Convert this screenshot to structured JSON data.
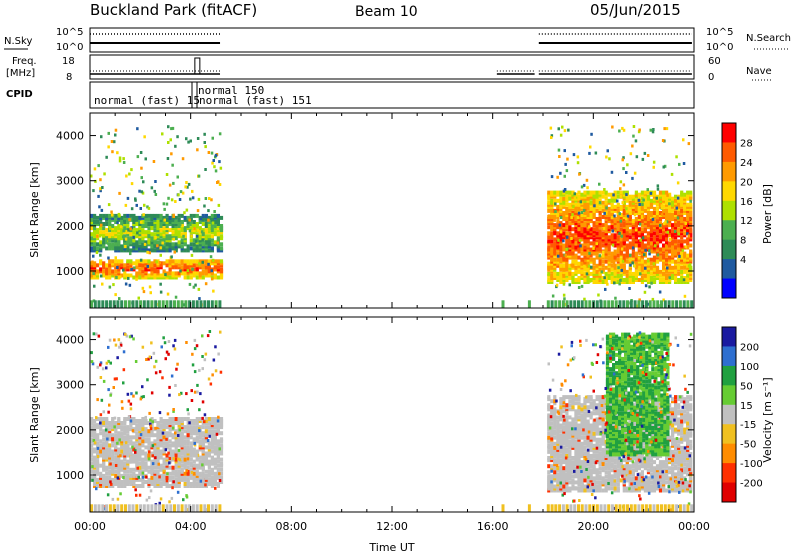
{
  "header": {
    "station": "Buckland Park (fitACF)",
    "beam": "Beam 10",
    "date": "05/Jun/2015"
  },
  "top_panels": {
    "nsky_label": "N.Sky",
    "nsearch_label": "N.Search",
    "left_ticks": [
      "10^5",
      "10^0"
    ],
    "right_ticks": [
      "10^5",
      "10^0"
    ],
    "freq_label_1": "Freq.",
    "freq_label_2": "[MHz]",
    "freq_ticks": [
      "18",
      "8"
    ],
    "nave_label": "Nave",
    "nave_ticks": [
      "60",
      "0"
    ],
    "cpid_label": "CPID",
    "cpid_entries": [
      "normal (fast) 15",
      "normal 150",
      "normal (fast) 151"
    ]
  },
  "chart_data": [
    {
      "type": "heatmap",
      "title": "",
      "xlabel": "",
      "ylabel": "Slant Range [km]",
      "xlim": [
        "00:00",
        "24:00"
      ],
      "ylim": [
        180,
        4500
      ],
      "yticks": [
        1000,
        2000,
        3000,
        4000
      ],
      "colorbar": {
        "label": "Power [dB]",
        "ticks": [
          "28",
          "24",
          "20",
          "16",
          "12",
          "8",
          "4"
        ],
        "colors": [
          "#ff0000",
          "#ff5a00",
          "#ff9a00",
          "#ffd800",
          "#aee000",
          "#4caf50",
          "#2e8b57",
          "#1f5aa0",
          "#0000ff"
        ]
      },
      "features": [
        {
          "desc": "strong scatter band",
          "time": [
            "00:00",
            "05:10"
          ],
          "range_km": [
            900,
            1300
          ],
          "level_db": 26
        },
        {
          "desc": "second band",
          "time": [
            "00:00",
            "05:10"
          ],
          "range_km": [
            1500,
            2300
          ],
          "level_db": 18
        },
        {
          "desc": "evening echoes",
          "time": [
            "18:10",
            "23:50"
          ],
          "range_km": [
            800,
            2800
          ],
          "level_db": 24
        }
      ]
    },
    {
      "type": "heatmap",
      "title": "",
      "xlabel": "Time UT",
      "ylabel": "Slant Range [km]",
      "xlim": [
        "00:00",
        "24:00"
      ],
      "ylim": [
        180,
        4500
      ],
      "xticks": [
        "00:00",
        "04:00",
        "08:00",
        "12:00",
        "16:00",
        "20:00",
        "00:00"
      ],
      "yticks": [
        1000,
        2000,
        3000,
        4000
      ],
      "colorbar": {
        "label": "Velocity [m s⁻¹]",
        "ticks": [
          "200",
          "100",
          "50",
          "15",
          "-15",
          "-50",
          "-100",
          "-200"
        ],
        "colors": [
          "#1a1aa0",
          "#2e6fd0",
          "#20a040",
          "#66cc33",
          "#c0c0c0",
          "#f0c020",
          "#ff8c00",
          "#ff3000",
          "#e00000"
        ]
      },
      "features": [
        {
          "desc": "ground scatter (grey, |v|<15)",
          "time": [
            "00:00",
            "05:10"
          ],
          "range_km": [
            800,
            2300
          ],
          "velocity": 0
        },
        {
          "desc": "evening ground scatter",
          "time": [
            "18:10",
            "23:50"
          ],
          "range_km": [
            700,
            2800
          ],
          "velocity": 0
        },
        {
          "desc": "ionospheric scatter streaks",
          "time": [
            "20:30",
            "23:00"
          ],
          "range_km": [
            1500,
            4200
          ],
          "velocity": 60
        }
      ]
    }
  ]
}
